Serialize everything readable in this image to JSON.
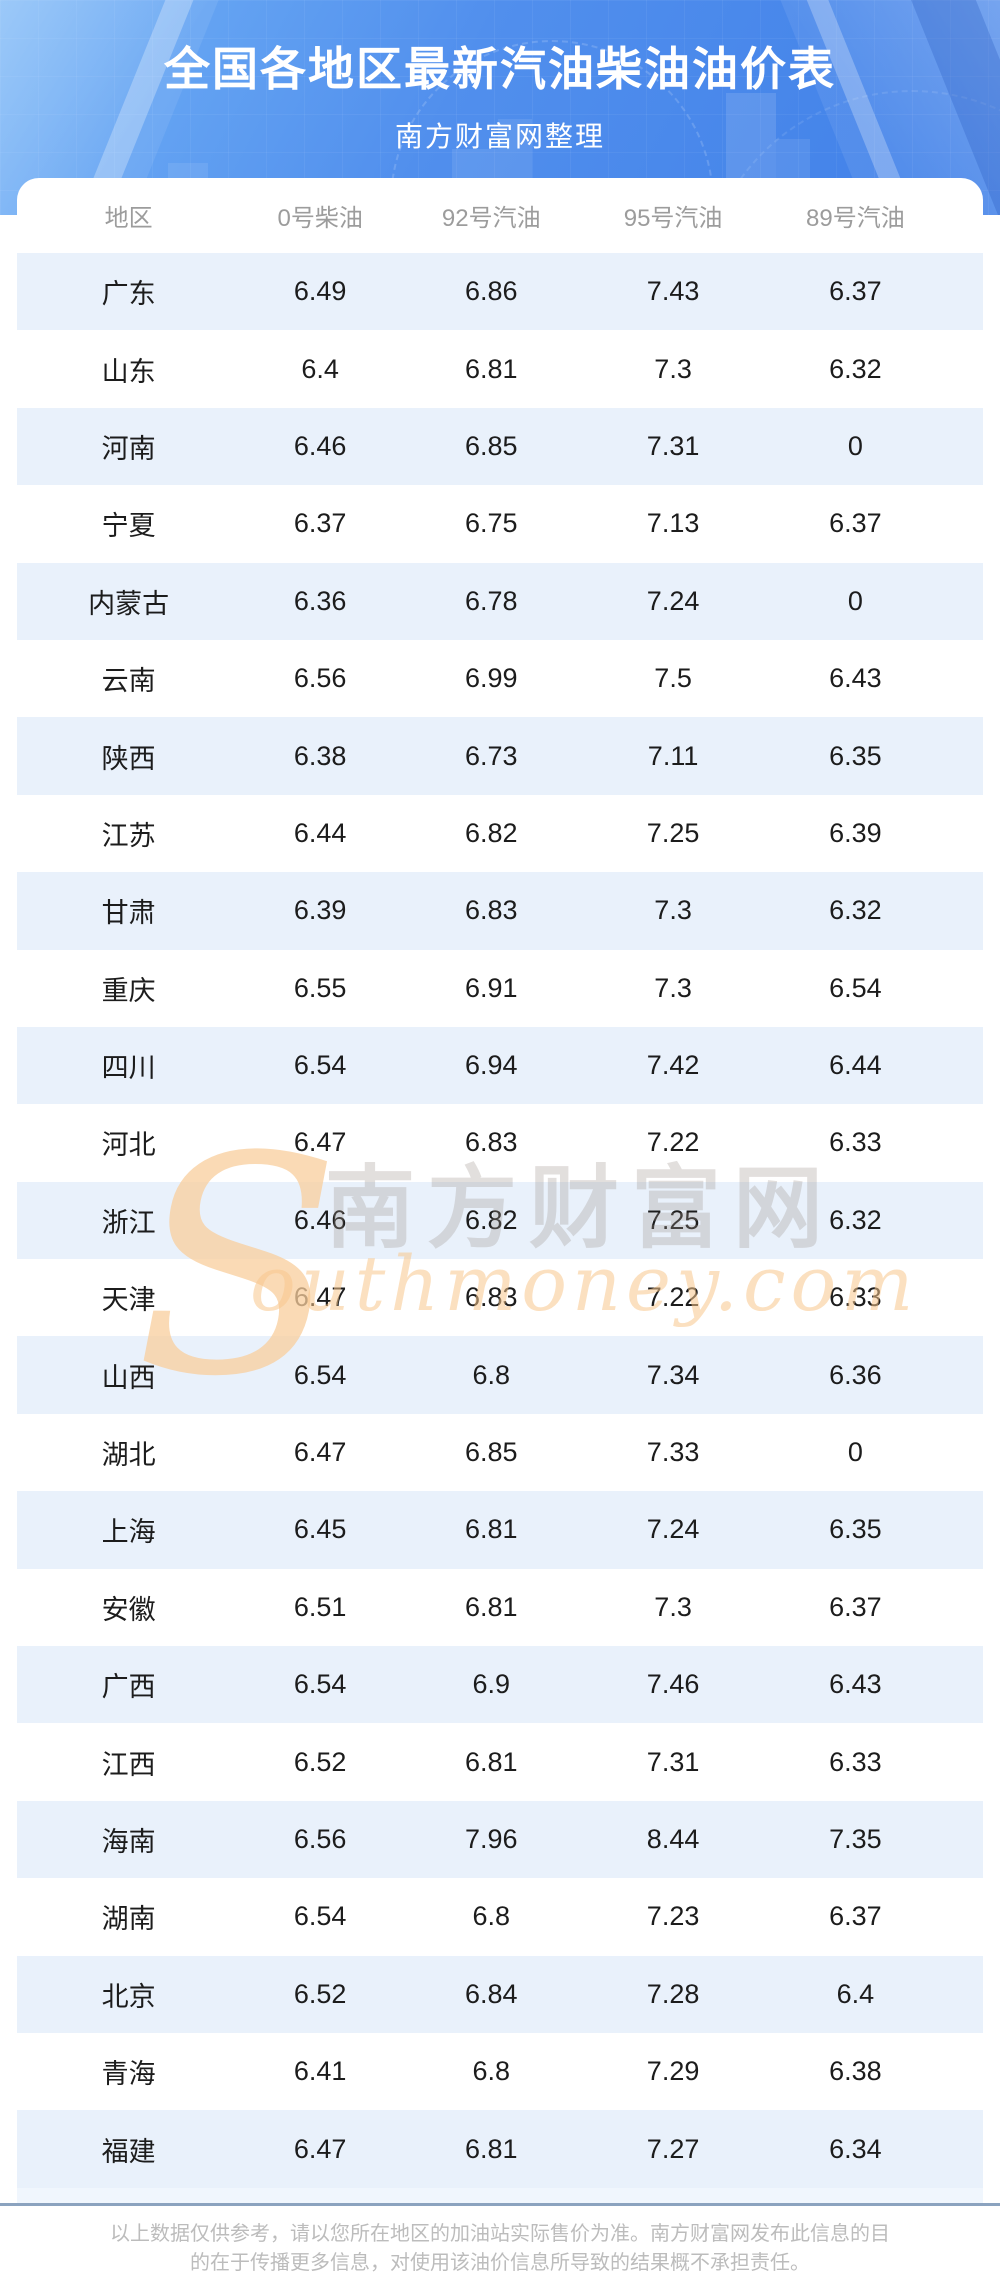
{
  "header": {
    "title": "全国各地区最新汽油柴油油价表",
    "subtitle": "南方财富网整理"
  },
  "table": {
    "columns": [
      "地区",
      "0号柴油",
      "92号汽油",
      "95号汽油",
      "89号汽油"
    ],
    "rows": [
      {
        "region": "广东",
        "values": [
          "6.49",
          "6.86",
          "7.43",
          "6.37"
        ]
      },
      {
        "region": "山东",
        "values": [
          "6.4",
          "6.81",
          "7.3",
          "6.32"
        ]
      },
      {
        "region": "河南",
        "values": [
          "6.46",
          "6.85",
          "7.31",
          "0"
        ]
      },
      {
        "region": "宁夏",
        "values": [
          "6.37",
          "6.75",
          "7.13",
          "6.37"
        ]
      },
      {
        "region": "内蒙古",
        "values": [
          "6.36",
          "6.78",
          "7.24",
          "0"
        ]
      },
      {
        "region": "云南",
        "values": [
          "6.56",
          "6.99",
          "7.5",
          "6.43"
        ]
      },
      {
        "region": "陕西",
        "values": [
          "6.38",
          "6.73",
          "7.11",
          "6.35"
        ]
      },
      {
        "region": "江苏",
        "values": [
          "6.44",
          "6.82",
          "7.25",
          "6.39"
        ]
      },
      {
        "region": "甘肃",
        "values": [
          "6.39",
          "6.83",
          "7.3",
          "6.32"
        ]
      },
      {
        "region": "重庆",
        "values": [
          "6.55",
          "6.91",
          "7.3",
          "6.54"
        ]
      },
      {
        "region": "四川",
        "values": [
          "6.54",
          "6.94",
          "7.42",
          "6.44"
        ]
      },
      {
        "region": "河北",
        "values": [
          "6.47",
          "6.83",
          "7.22",
          "6.33"
        ]
      },
      {
        "region": "浙江",
        "values": [
          "6.46",
          "6.82",
          "7.25",
          "6.32"
        ]
      },
      {
        "region": "天津",
        "values": [
          "6.47",
          "6.83",
          "7.22",
          "6.33"
        ]
      },
      {
        "region": "山西",
        "values": [
          "6.54",
          "6.8",
          "7.34",
          "6.36"
        ]
      },
      {
        "region": "湖北",
        "values": [
          "6.47",
          "6.85",
          "7.33",
          "0"
        ]
      },
      {
        "region": "上海",
        "values": [
          "6.45",
          "6.81",
          "7.24",
          "6.35"
        ]
      },
      {
        "region": "安徽",
        "values": [
          "6.51",
          "6.81",
          "7.3",
          "6.37"
        ]
      },
      {
        "region": "广西",
        "values": [
          "6.54",
          "6.9",
          "7.46",
          "6.43"
        ]
      },
      {
        "region": "江西",
        "values": [
          "6.52",
          "6.81",
          "7.31",
          "6.33"
        ]
      },
      {
        "region": "海南",
        "values": [
          "6.56",
          "7.96",
          "8.44",
          "7.35"
        ]
      },
      {
        "region": "湖南",
        "values": [
          "6.54",
          "6.8",
          "7.23",
          "6.37"
        ]
      },
      {
        "region": "北京",
        "values": [
          "6.52",
          "6.84",
          "7.28",
          "6.4"
        ]
      },
      {
        "region": "青海",
        "values": [
          "6.41",
          "6.8",
          "7.29",
          "6.38"
        ]
      },
      {
        "region": "福建",
        "values": [
          "6.47",
          "6.81",
          "7.27",
          "6.34"
        ]
      }
    ]
  },
  "watermark": {
    "initial": "S",
    "cn": "南方财富网",
    "en": "outhmoney.com"
  },
  "footer": {
    "line1": "以上数据仅供参考，请以您所在地区的加油站实际售价为准。南方财富网发布此信息的目",
    "line2": "的在于传播更多信息，对使用该油价信息所导致的结果概不承担责任。"
  },
  "colors": {
    "header_blue": "#4e8dec",
    "stripe_blue": "#e9f1fb",
    "separator": "#8ba3bf",
    "column_header_text": "#9c9c9c",
    "footer_text": "#bcbcbc",
    "watermark_orange": "#f6c48f"
  }
}
